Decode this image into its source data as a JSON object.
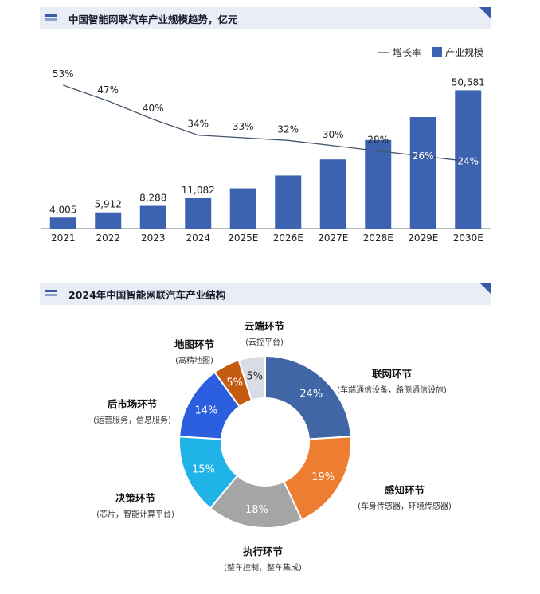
{
  "section1": {
    "title": "中国智能网联汽车产业规模趋势，亿元"
  },
  "section2": {
    "title": "2024年中国智能网联汽车产业结构"
  },
  "colors": {
    "bar": "#3c63b0",
    "line": "#44546a",
    "header_bg": "#e9edf5",
    "accent": "#3a5aa8"
  },
  "chart_data": [
    {
      "type": "bar",
      "categories": [
        "2021",
        "2022",
        "2023",
        "2024",
        "2025E",
        "2026E",
        "2027E",
        "2028E",
        "2029E",
        "2030E"
      ],
      "series": [
        {
          "name": "产业规模",
          "type": "bar",
          "values": [
            4005,
            5912,
            8288,
            11082,
            null,
            null,
            null,
            null,
            null,
            50581
          ],
          "estimated_values": [
            4005,
            5912,
            8288,
            11082,
            14700,
            19400,
            25300,
            32400,
            40800,
            50581
          ],
          "value_labels": [
            "4,005",
            "5,912",
            "8,288",
            "11,082",
            "",
            "",
            "",
            "",
            "",
            "50,581"
          ]
        },
        {
          "name": "增长率",
          "type": "line",
          "values": [
            53,
            47,
            40,
            34,
            33,
            32,
            30,
            28,
            26,
            24
          ],
          "value_labels": [
            "53%",
            "47%",
            "40%",
            "34%",
            "33%",
            "32%",
            "30%",
            "28%",
            "26%",
            "24%"
          ]
        }
      ],
      "legend": {
        "position": "top-right",
        "items": [
          "增长率",
          "产业规模"
        ]
      },
      "ylim": [
        0,
        55000
      ]
    },
    {
      "type": "pie",
      "donut": true,
      "slices": [
        {
          "name": "联网环节",
          "desc": "(车端通信设备，路侧通信设施)",
          "value": 24,
          "label": "24%",
          "color": "#4166a6"
        },
        {
          "name": "感知环节",
          "desc": "(车身传感器，环境传感器)",
          "value": 19,
          "label": "19%",
          "color": "#ed7d31"
        },
        {
          "name": "执行环节",
          "desc": "(整车控制，整车集成)",
          "value": 18,
          "label": "18%",
          "color": "#a5a5a5"
        },
        {
          "name": "决策环节",
          "desc": "(芯片，智能计算平台)",
          "value": 15,
          "label": "15%",
          "color": "#1fb3e8"
        },
        {
          "name": "后市场环节",
          "desc": "(运营服务，信息服务)",
          "value": 14,
          "label": "14%",
          "color": "#2c5ee0"
        },
        {
          "name": "地图环节",
          "desc": "(高精地图)",
          "value": 5,
          "label": "5%",
          "color": "#c55a11"
        },
        {
          "name": "云端环节",
          "desc": "(云控平台)",
          "value": 5,
          "label": "5%",
          "color": "#d9dce6"
        }
      ]
    }
  ]
}
